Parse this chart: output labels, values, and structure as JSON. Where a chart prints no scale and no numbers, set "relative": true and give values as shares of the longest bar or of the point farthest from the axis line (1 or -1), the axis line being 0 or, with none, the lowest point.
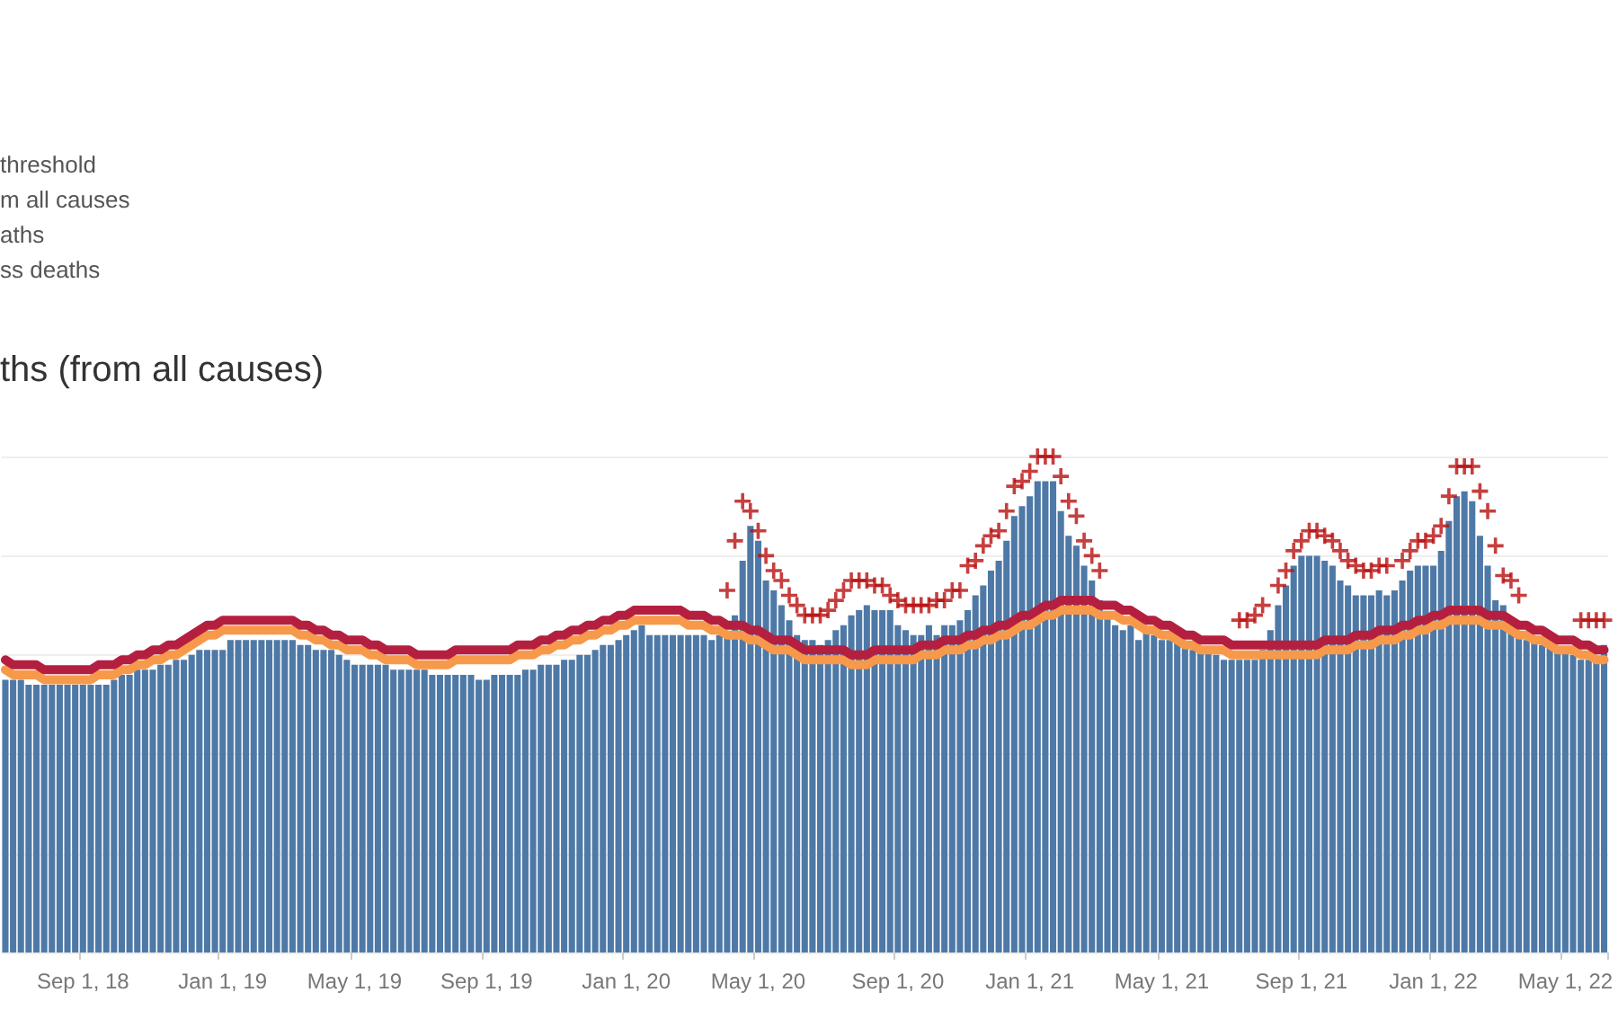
{
  "chart_data": {
    "type": "bar",
    "title": "ths (from all causes)",
    "annotations": [
      "threshold",
      "m all causes",
      "aths",
      "ss deaths"
    ],
    "relative": true,
    "grid": "y",
    "tick_labels": "x",
    "categories": [
      null,
      null,
      null,
      null,
      null,
      null,
      null,
      null,
      null,
      null,
      "Sep 1, 18",
      null,
      null,
      null,
      null,
      null,
      null,
      null,
      null,
      null,
      null,
      null,
      null,
      null,
      null,
      null,
      null,
      null,
      "Jan 1, 19",
      null,
      null,
      null,
      null,
      null,
      null,
      null,
      null,
      null,
      null,
      null,
      null,
      null,
      null,
      null,
      null,
      "May 1, 19",
      null,
      null,
      null,
      null,
      null,
      null,
      null,
      null,
      null,
      null,
      null,
      null,
      null,
      null,
      null,
      null,
      "Sep 1, 19",
      null,
      null,
      null,
      null,
      null,
      null,
      null,
      null,
      null,
      null,
      null,
      null,
      null,
      null,
      null,
      null,
      null,
      "Jan 1, 20",
      null,
      null,
      null,
      null,
      null,
      null,
      null,
      null,
      null,
      null,
      null,
      null,
      null,
      null,
      null,
      null,
      "May 1, 20",
      null,
      null,
      null,
      null,
      null,
      null,
      null,
      null,
      null,
      null,
      null,
      null,
      null,
      null,
      null,
      null,
      null,
      "Sep 1, 20",
      null,
      null,
      null,
      null,
      null,
      null,
      null,
      null,
      null,
      null,
      null,
      null,
      null,
      null,
      null,
      null,
      "Jan 1, 21",
      null,
      null,
      null,
      null,
      null,
      null,
      null,
      null,
      null,
      null,
      null,
      null,
      null,
      null,
      null,
      null,
      "May 1, 21",
      null,
      null,
      null,
      null,
      null,
      null,
      null,
      null,
      null,
      null,
      null,
      null,
      null,
      null,
      null,
      null,
      null,
      "Sep 1, 21",
      null,
      null,
      null,
      null,
      null,
      null,
      null,
      null,
      null,
      null,
      null,
      null,
      null,
      null,
      null,
      null,
      "Jan 1, 22",
      null,
      null,
      null,
      null,
      null,
      null,
      null,
      null,
      null,
      null,
      null,
      null,
      null,
      null,
      null,
      null,
      "May 1, 22",
      null,
      null,
      null,
      null,
      null
    ],
    "series": [
      {
        "type": "bar",
        "color": "#4e79a7",
        "values": [
          0.55,
          0.55,
          0.55,
          0.54,
          0.54,
          0.54,
          0.54,
          0.54,
          0.54,
          0.54,
          0.54,
          0.54,
          0.54,
          0.54,
          0.55,
          0.56,
          0.56,
          0.57,
          0.57,
          0.57,
          0.58,
          0.58,
          0.59,
          0.59,
          0.6,
          0.61,
          0.61,
          0.61,
          0.61,
          0.63,
          0.63,
          0.63,
          0.63,
          0.63,
          0.63,
          0.63,
          0.63,
          0.63,
          0.62,
          0.62,
          0.61,
          0.61,
          0.61,
          0.6,
          0.59,
          0.58,
          0.58,
          0.58,
          0.58,
          0.58,
          0.57,
          0.57,
          0.57,
          0.57,
          0.57,
          0.56,
          0.56,
          0.56,
          0.56,
          0.56,
          0.56,
          0.55,
          0.55,
          0.56,
          0.56,
          0.56,
          0.56,
          0.57,
          0.57,
          0.58,
          0.58,
          0.58,
          0.59,
          0.59,
          0.6,
          0.6,
          0.61,
          0.62,
          0.62,
          0.63,
          0.64,
          0.65,
          0.66,
          0.64,
          0.64,
          0.64,
          0.64,
          0.64,
          0.64,
          0.64,
          0.64,
          0.63,
          0.64,
          0.64,
          0.68,
          0.79,
          0.86,
          0.83,
          0.75,
          0.73,
          0.7,
          0.67,
          0.64,
          0.63,
          0.63,
          0.62,
          0.63,
          0.65,
          0.66,
          0.68,
          0.69,
          0.7,
          0.69,
          0.69,
          0.69,
          0.66,
          0.65,
          0.64,
          0.64,
          0.66,
          0.64,
          0.66,
          0.66,
          0.67,
          0.69,
          0.72,
          0.74,
          0.77,
          0.79,
          0.83,
          0.88,
          0.9,
          0.92,
          0.95,
          0.95,
          0.95,
          0.89,
          0.84,
          0.82,
          0.78,
          0.75,
          0.71,
          0.68,
          0.66,
          0.65,
          0.66,
          0.63,
          0.65,
          0.64,
          0.63,
          0.63,
          0.63,
          0.62,
          0.61,
          0.61,
          0.61,
          0.6,
          0.59,
          0.59,
          0.59,
          0.59,
          0.59,
          0.61,
          0.65,
          0.7,
          0.74,
          0.78,
          0.8,
          0.8,
          0.8,
          0.79,
          0.78,
          0.75,
          0.74,
          0.72,
          0.72,
          0.72,
          0.73,
          0.72,
          0.73,
          0.75,
          0.77,
          0.78,
          0.78,
          0.78,
          0.81,
          0.87,
          0.92,
          0.93,
          0.91,
          0.84,
          0.78,
          0.71,
          0.7,
          0.65,
          0.64,
          0.63,
          0.63,
          0.62,
          0.62,
          0.61,
          0.61,
          0.6,
          0.59,
          0.59,
          0.59,
          0.62
        ]
      },
      {
        "type": "line",
        "color": "#f7994a",
        "marker": "none",
        "line_style": "solid",
        "values": [
          0.57,
          0.56,
          0.56,
          0.56,
          0.56,
          0.55,
          0.55,
          0.55,
          0.55,
          0.55,
          0.55,
          0.55,
          0.56,
          0.56,
          0.56,
          0.57,
          0.57,
          0.58,
          0.58,
          0.59,
          0.59,
          0.6,
          0.6,
          0.61,
          0.62,
          0.63,
          0.64,
          0.64,
          0.65,
          0.65,
          0.65,
          0.65,
          0.65,
          0.65,
          0.65,
          0.65,
          0.65,
          0.65,
          0.64,
          0.64,
          0.63,
          0.63,
          0.62,
          0.62,
          0.61,
          0.61,
          0.61,
          0.6,
          0.6,
          0.59,
          0.59,
          0.59,
          0.59,
          0.58,
          0.58,
          0.58,
          0.58,
          0.58,
          0.59,
          0.59,
          0.59,
          0.59,
          0.59,
          0.59,
          0.59,
          0.59,
          0.6,
          0.6,
          0.6,
          0.61,
          0.61,
          0.62,
          0.62,
          0.63,
          0.63,
          0.64,
          0.64,
          0.65,
          0.65,
          0.66,
          0.66,
          0.67,
          0.67,
          0.67,
          0.67,
          0.67,
          0.67,
          0.67,
          0.66,
          0.66,
          0.66,
          0.65,
          0.65,
          0.64,
          0.64,
          0.64,
          0.63,
          0.63,
          0.62,
          0.61,
          0.61,
          0.61,
          0.6,
          0.59,
          0.59,
          0.59,
          0.59,
          0.59,
          0.59,
          0.58,
          0.58,
          0.58,
          0.59,
          0.59,
          0.59,
          0.59,
          0.59,
          0.59,
          0.6,
          0.6,
          0.6,
          0.61,
          0.61,
          0.61,
          0.62,
          0.62,
          0.63,
          0.63,
          0.64,
          0.64,
          0.65,
          0.66,
          0.66,
          0.67,
          0.68,
          0.68,
          0.69,
          0.69,
          0.69,
          0.69,
          0.69,
          0.68,
          0.68,
          0.68,
          0.67,
          0.67,
          0.66,
          0.65,
          0.65,
          0.64,
          0.64,
          0.63,
          0.62,
          0.62,
          0.61,
          0.61,
          0.61,
          0.61,
          0.6,
          0.6,
          0.6,
          0.6,
          0.6,
          0.6,
          0.6,
          0.6,
          0.6,
          0.6,
          0.6,
          0.6,
          0.61,
          0.61,
          0.61,
          0.61,
          0.62,
          0.62,
          0.62,
          0.63,
          0.63,
          0.63,
          0.64,
          0.64,
          0.65,
          0.65,
          0.66,
          0.66,
          0.67,
          0.67,
          0.67,
          0.67,
          0.67,
          0.66,
          0.66,
          0.66,
          0.65,
          0.64,
          0.64,
          0.63,
          0.63,
          0.62,
          0.61,
          0.61,
          0.61,
          0.6,
          0.6,
          0.59,
          0.59
        ]
      },
      {
        "type": "line",
        "color": "#b51f3f",
        "marker": "none",
        "line_style": "solid",
        "values": [
          0.59,
          0.58,
          0.58,
          0.58,
          0.58,
          0.57,
          0.57,
          0.57,
          0.57,
          0.57,
          0.57,
          0.57,
          0.58,
          0.58,
          0.58,
          0.59,
          0.59,
          0.6,
          0.6,
          0.61,
          0.61,
          0.62,
          0.62,
          0.63,
          0.64,
          0.65,
          0.66,
          0.66,
          0.67,
          0.67,
          0.67,
          0.67,
          0.67,
          0.67,
          0.67,
          0.67,
          0.67,
          0.67,
          0.66,
          0.66,
          0.65,
          0.65,
          0.64,
          0.64,
          0.63,
          0.63,
          0.63,
          0.62,
          0.62,
          0.61,
          0.61,
          0.61,
          0.61,
          0.6,
          0.6,
          0.6,
          0.6,
          0.6,
          0.61,
          0.61,
          0.61,
          0.61,
          0.61,
          0.61,
          0.61,
          0.61,
          0.62,
          0.62,
          0.62,
          0.63,
          0.63,
          0.64,
          0.64,
          0.65,
          0.65,
          0.66,
          0.66,
          0.67,
          0.67,
          0.68,
          0.68,
          0.69,
          0.69,
          0.69,
          0.69,
          0.69,
          0.69,
          0.69,
          0.68,
          0.68,
          0.68,
          0.67,
          0.67,
          0.66,
          0.66,
          0.66,
          0.65,
          0.65,
          0.64,
          0.63,
          0.63,
          0.63,
          0.62,
          0.61,
          0.61,
          0.61,
          0.61,
          0.61,
          0.61,
          0.6,
          0.6,
          0.6,
          0.61,
          0.61,
          0.61,
          0.61,
          0.61,
          0.61,
          0.62,
          0.62,
          0.62,
          0.63,
          0.63,
          0.63,
          0.64,
          0.64,
          0.65,
          0.65,
          0.66,
          0.66,
          0.67,
          0.68,
          0.68,
          0.69,
          0.7,
          0.7,
          0.71,
          0.71,
          0.71,
          0.71,
          0.71,
          0.7,
          0.7,
          0.7,
          0.69,
          0.69,
          0.68,
          0.67,
          0.67,
          0.66,
          0.66,
          0.65,
          0.64,
          0.64,
          0.63,
          0.63,
          0.63,
          0.63,
          0.62,
          0.62,
          0.62,
          0.62,
          0.62,
          0.62,
          0.62,
          0.62,
          0.62,
          0.62,
          0.62,
          0.62,
          0.63,
          0.63,
          0.63,
          0.63,
          0.64,
          0.64,
          0.64,
          0.65,
          0.65,
          0.65,
          0.66,
          0.66,
          0.67,
          0.67,
          0.68,
          0.68,
          0.69,
          0.69,
          0.69,
          0.69,
          0.69,
          0.68,
          0.68,
          0.68,
          0.67,
          0.66,
          0.66,
          0.65,
          0.65,
          0.64,
          0.63,
          0.63,
          0.63,
          0.62,
          0.62,
          0.61,
          0.61
        ]
      },
      {
        "type": "scatter",
        "color": "#b80f0f",
        "marker": "cross",
        "values": [
          null,
          null,
          null,
          null,
          null,
          null,
          null,
          null,
          null,
          null,
          null,
          null,
          null,
          null,
          null,
          null,
          null,
          null,
          null,
          null,
          null,
          null,
          null,
          null,
          null,
          null,
          null,
          null,
          null,
          null,
          null,
          null,
          null,
          null,
          null,
          null,
          null,
          null,
          null,
          null,
          null,
          null,
          null,
          null,
          null,
          null,
          null,
          null,
          null,
          null,
          null,
          null,
          null,
          null,
          null,
          null,
          null,
          null,
          null,
          null,
          null,
          null,
          null,
          null,
          null,
          null,
          null,
          null,
          null,
          null,
          null,
          null,
          null,
          null,
          null,
          null,
          null,
          null,
          null,
          null,
          null,
          null,
          null,
          null,
          null,
          null,
          null,
          null,
          null,
          null,
          null,
          null,
          null,
          0.73,
          0.83,
          0.91,
          0.89,
          0.85,
          0.8,
          0.77,
          0.75,
          0.72,
          0.7,
          0.68,
          0.68,
          0.68,
          0.69,
          0.71,
          0.73,
          0.75,
          0.75,
          0.75,
          0.74,
          0.74,
          0.72,
          0.71,
          0.7,
          0.7,
          0.7,
          0.7,
          0.71,
          0.71,
          0.73,
          0.73,
          0.78,
          0.79,
          0.82,
          0.84,
          0.85,
          0.89,
          0.94,
          0.95,
          0.97,
          1.0,
          1.0,
          1.0,
          0.96,
          0.91,
          0.88,
          0.83,
          0.8,
          0.77,
          null,
          null,
          null,
          null,
          null,
          null,
          null,
          null,
          null,
          null,
          null,
          null,
          null,
          null,
          null,
          null,
          null,
          0.67,
          0.67,
          0.68,
          0.7,
          null,
          0.74,
          0.77,
          0.81,
          0.83,
          0.85,
          0.85,
          0.84,
          0.83,
          0.81,
          0.79,
          0.78,
          0.77,
          0.77,
          0.78,
          0.78,
          null,
          0.79,
          0.81,
          0.83,
          0.83,
          0.84,
          0.86,
          0.92,
          0.98,
          0.98,
          0.98,
          0.93,
          0.89,
          0.82,
          0.76,
          0.75,
          0.72,
          null,
          null,
          null,
          null,
          null,
          null,
          null,
          0.67,
          0.67,
          0.67,
          0.67
        ]
      }
    ]
  }
}
